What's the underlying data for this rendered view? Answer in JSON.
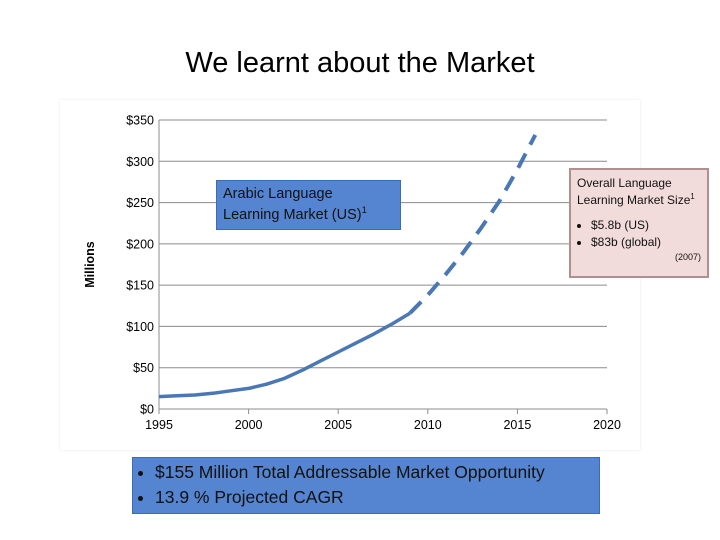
{
  "slide": {
    "title": "We learnt about the Market"
  },
  "chart_data": {
    "type": "line",
    "ylabel": "Millions",
    "xlim": [
      1995,
      2020
    ],
    "ylim": [
      0,
      350
    ],
    "x_ticks": [
      "1995",
      "2000",
      "2005",
      "2010",
      "2015",
      "2020"
    ],
    "y_ticks": [
      "$0",
      "$50",
      "$100",
      "$150",
      "$200",
      "$250",
      "$300",
      "$350"
    ],
    "grid": "horizontal",
    "series": [
      {
        "style": "solid",
        "color": "#4a78b5",
        "x": [
          1995,
          1996,
          1997,
          1998,
          1999,
          2000,
          2001,
          2002,
          2003,
          2004,
          2005,
          2006,
          2007,
          2008,
          2009
        ],
        "y": [
          15,
          16,
          17,
          19,
          22,
          25,
          30,
          37,
          47,
          58,
          69,
          80,
          91,
          103,
          116
        ]
      },
      {
        "style": "dashed",
        "color": "#4a78b5",
        "x": [
          2009,
          2010,
          2011,
          2012,
          2013,
          2014,
          2015,
          2016
        ],
        "y": [
          116,
          138,
          163,
          190,
          220,
          252,
          290,
          332
        ]
      }
    ]
  },
  "callouts": {
    "arabic": {
      "line1": "Arabic Language",
      "line2": "Learning Market (US)",
      "sup": "1"
    },
    "overall": {
      "heading1": "Overall Language",
      "heading2": "Learning Market Size",
      "sup": "1",
      "items": [
        "$5.8b (US)",
        "$83b (global)"
      ],
      "year": "(2007)"
    }
  },
  "summary": {
    "items": [
      "$155 Million Total Addressable Market Opportunity",
      "13.9 % Projected CAGR"
    ]
  }
}
